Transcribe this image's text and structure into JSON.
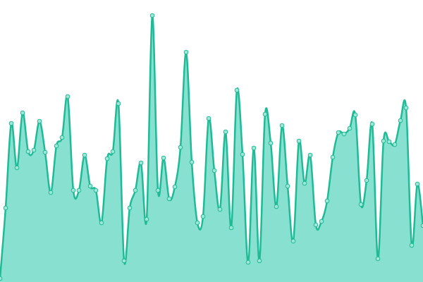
{
  "chart_data": {
    "type": "area",
    "values": [
      5,
      105,
      225,
      162,
      240,
      185,
      187,
      228,
      184,
      127,
      193,
      205,
      263,
      130,
      130,
      180,
      136,
      130,
      84,
      175,
      185,
      253,
      30,
      105,
      130,
      169,
      89,
      378,
      130,
      176,
      118,
      135,
      191,
      326,
      170,
      84,
      93,
      232,
      158,
      103,
      213,
      77,
      272,
      181,
      28,
      190,
      30,
      238,
      197,
      107,
      222,
      136,
      58,
      200,
      140,
      180,
      81,
      86,
      115,
      177,
      212,
      210,
      218,
      237,
      110,
      144,
      224,
      33,
      200,
      199,
      195,
      229,
      247,
      52,
      139,
      80
    ],
    "ylim": [
      0,
      400
    ],
    "color": "#1fba96",
    "fill_color": "#88e1d0",
    "marker_color": "#9fe8d8"
  }
}
